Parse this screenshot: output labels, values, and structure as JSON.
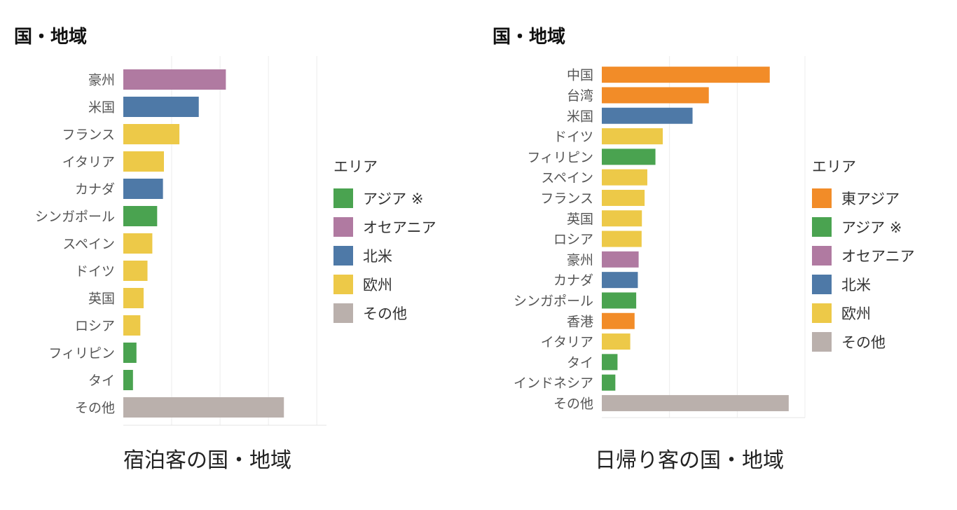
{
  "colors": {
    "東アジア": "#f28c28",
    "アジア ※": "#4aa350",
    "オセアニア": "#b07aa1",
    "北米": "#4e79a7",
    "欧州": "#edc948",
    "その他": "#bab0ac"
  },
  "charts": [
    {
      "heading": "国・地域",
      "caption": "宿泊客の国・地域",
      "legend_title": "エリア",
      "legend": [
        {
          "label": "アジア ※"
        },
        {
          "label": "オセアニア"
        },
        {
          "label": "北米"
        },
        {
          "label": "欧州"
        },
        {
          "label": "その他"
        }
      ]
    },
    {
      "heading": "国・地域",
      "caption": "日帰り客の国・地域",
      "legend_title": "エリア",
      "legend": [
        {
          "label": "東アジア"
        },
        {
          "label": "アジア ※"
        },
        {
          "label": "オセアニア"
        },
        {
          "label": "北米"
        },
        {
          "label": "欧州"
        },
        {
          "label": "その他"
        }
      ]
    }
  ],
  "chart_data": [
    {
      "type": "bar",
      "orientation": "horizontal",
      "title": "宿泊客の国・地域",
      "ylabel": "国・地域",
      "legend_title": "エリア",
      "legend_position": "right",
      "grid": true,
      "xlim": [
        0,
        10.5
      ],
      "categories": [
        "豪州",
        "米国",
        "フランス",
        "イタリア",
        "カナダ",
        "シンガポール",
        "スペイン",
        "ドイツ",
        "英国",
        "ロシア",
        "フィリピン",
        "タイ",
        "その他"
      ],
      "values": [
        5.3,
        3.9,
        2.9,
        2.1,
        2.05,
        1.75,
        1.5,
        1.25,
        1.05,
        0.88,
        0.68,
        0.5,
        8.3
      ],
      "area": [
        "オセアニア",
        "北米",
        "欧州",
        "欧州",
        "北米",
        "アジア ※",
        "欧州",
        "欧州",
        "欧州",
        "欧州",
        "アジア ※",
        "アジア ※",
        "その他"
      ]
    },
    {
      "type": "bar",
      "orientation": "horizontal",
      "title": "日帰り客の国・地域",
      "ylabel": "国・地域",
      "legend_title": "エリア",
      "legend_position": "right",
      "grid": true,
      "xlim": [
        0,
        7.5
      ],
      "categories": [
        "中国",
        "台湾",
        "米国",
        "ドイツ",
        "フィリピン",
        "スペイン",
        "フランス",
        "英国",
        "ロシア",
        "豪州",
        "カナダ",
        "シンガポール",
        "香港",
        "イタリア",
        "タイ",
        "インドネシア",
        "その他"
      ],
      "values": [
        6.2,
        3.95,
        3.35,
        2.25,
        1.98,
        1.68,
        1.58,
        1.48,
        1.47,
        1.36,
        1.33,
        1.27,
        1.21,
        1.05,
        0.58,
        0.5,
        6.9
      ],
      "area": [
        "東アジア",
        "東アジア",
        "北米",
        "欧州",
        "アジア ※",
        "欧州",
        "欧州",
        "欧州",
        "欧州",
        "オセアニア",
        "北米",
        "アジア ※",
        "東アジア",
        "欧州",
        "アジア ※",
        "アジア ※",
        "その他"
      ]
    }
  ]
}
